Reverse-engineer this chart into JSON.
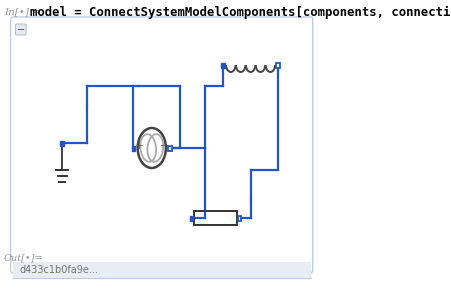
{
  "title_text": "model = ConnectSystemModelComponents[components, connections]",
  "title_prefix": "In[•]:=",
  "out_label": "Out[•]=",
  "footer_text": "d433c1b0fa9e...",
  "bg_color": "#ffffff",
  "panel_border": "#b8cfe8",
  "panel_bg": "#ffffff",
  "title_color": "#000000",
  "label_color": "#999999",
  "wire_color": "#2255cc",
  "coil_color": "#444444",
  "resistor_color": "#333333",
  "source_color": "#555555",
  "ground_color": "#333333",
  "sq_fill": "#2255cc",
  "sq_open": "#2255cc"
}
